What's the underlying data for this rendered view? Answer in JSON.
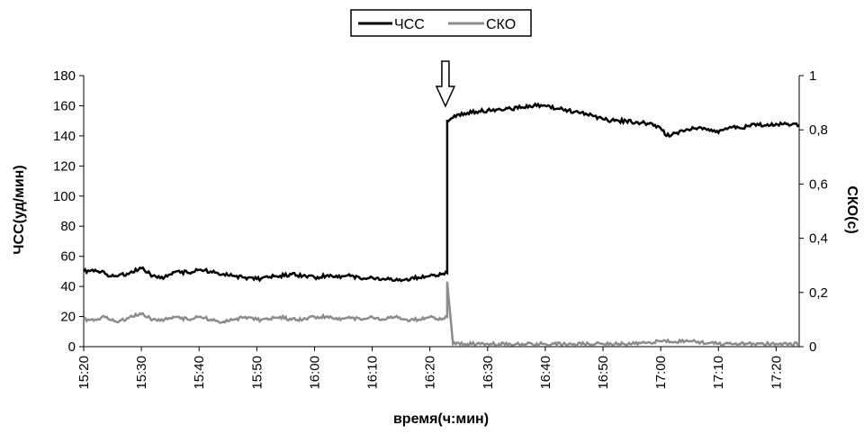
{
  "chart_data": {
    "type": "line",
    "xlabel": "время(ч:мин)",
    "ylabel_left": "ЧСС(уд/мин)",
    "ylabel_right": "СКО(с)",
    "x_ticks": [
      "15:20",
      "15:30",
      "15:40",
      "15:50",
      "16:00",
      "16:10",
      "16:20",
      "16:30",
      "16:40",
      "16:50",
      "17:00",
      "17:10",
      "17:20"
    ],
    "x_range_minutes": [
      0,
      124
    ],
    "ylim_left": [
      0,
      180
    ],
    "y_ticks_left": [
      "0",
      "20",
      "40",
      "60",
      "80",
      "100",
      "120",
      "140",
      "160",
      "180"
    ],
    "ylim_right": [
      0,
      1
    ],
    "y_ticks_right": [
      "0",
      "0,2",
      "0,4",
      "0,6",
      "0,8",
      "1"
    ],
    "grid": false,
    "legend_position": "top-center",
    "annotation": {
      "type": "down-arrow",
      "x": "16:23"
    },
    "series": [
      {
        "name": "ЧСС",
        "axis": "left",
        "color": "#000000",
        "x": [
          "15:20",
          "15:22",
          "15:24",
          "15:26",
          "15:28",
          "15:30",
          "15:32",
          "15:34",
          "15:36",
          "15:38",
          "15:40",
          "15:42",
          "15:44",
          "15:46",
          "15:48",
          "15:50",
          "15:52",
          "15:54",
          "15:56",
          "15:58",
          "16:00",
          "16:02",
          "16:04",
          "16:06",
          "16:08",
          "16:10",
          "16:12",
          "16:14",
          "16:16",
          "16:18",
          "16:20",
          "16:22",
          "16:23",
          "16:23",
          "16:24",
          "16:26",
          "16:28",
          "16:30",
          "16:32",
          "16:34",
          "16:36",
          "16:38",
          "16:40",
          "16:42",
          "16:44",
          "16:46",
          "16:48",
          "16:50",
          "16:52",
          "16:54",
          "16:56",
          "16:58",
          "17:00",
          "17:01",
          "17:02",
          "17:04",
          "17:06",
          "17:08",
          "17:10",
          "17:12",
          "17:14",
          "17:16",
          "17:18",
          "17:20",
          "17:22",
          "17:24"
        ],
        "values": [
          50,
          51,
          48,
          47,
          49,
          52,
          47,
          46,
          50,
          49,
          51,
          50,
          48,
          47,
          46,
          45,
          46,
          47,
          48,
          47,
          46,
          47,
          46,
          48,
          45,
          46,
          45,
          44,
          45,
          46,
          47,
          48,
          49,
          150,
          152,
          155,
          156,
          157,
          158,
          158,
          159,
          160,
          160,
          158,
          157,
          155,
          154,
          151,
          150,
          150,
          149,
          148,
          145,
          140,
          141,
          143,
          145,
          144,
          142,
          146,
          145,
          148,
          147,
          148,
          148,
          147
        ]
      },
      {
        "name": "СКО",
        "axis": "right",
        "color": "#8c8c8c",
        "x": [
          "15:20",
          "15:22",
          "15:24",
          "15:26",
          "15:28",
          "15:30",
          "15:32",
          "15:34",
          "15:36",
          "15:38",
          "15:40",
          "15:42",
          "15:44",
          "15:46",
          "15:48",
          "15:50",
          "15:52",
          "15:54",
          "15:56",
          "15:58",
          "16:00",
          "16:02",
          "16:04",
          "16:06",
          "16:08",
          "16:10",
          "16:12",
          "16:14",
          "16:16",
          "16:18",
          "16:20",
          "16:22",
          "16:23",
          "16:23",
          "16:24",
          "16:26",
          "16:30",
          "16:35",
          "16:40",
          "16:45",
          "16:50",
          "16:55",
          "17:00",
          "17:05",
          "17:10",
          "17:15",
          "17:20",
          "17:24"
        ],
        "values": [
          0.1,
          0.1,
          0.11,
          0.09,
          0.11,
          0.12,
          0.1,
          0.1,
          0.11,
          0.1,
          0.11,
          0.1,
          0.09,
          0.1,
          0.11,
          0.1,
          0.1,
          0.11,
          0.1,
          0.1,
          0.11,
          0.11,
          0.1,
          0.11,
          0.1,
          0.11,
          0.1,
          0.11,
          0.1,
          0.1,
          0.11,
          0.1,
          0.11,
          0.24,
          0.01,
          0.01,
          0.01,
          0.01,
          0.01,
          0.01,
          0.01,
          0.01,
          0.02,
          0.02,
          0.01,
          0.01,
          0.01,
          0.01
        ]
      }
    ]
  }
}
